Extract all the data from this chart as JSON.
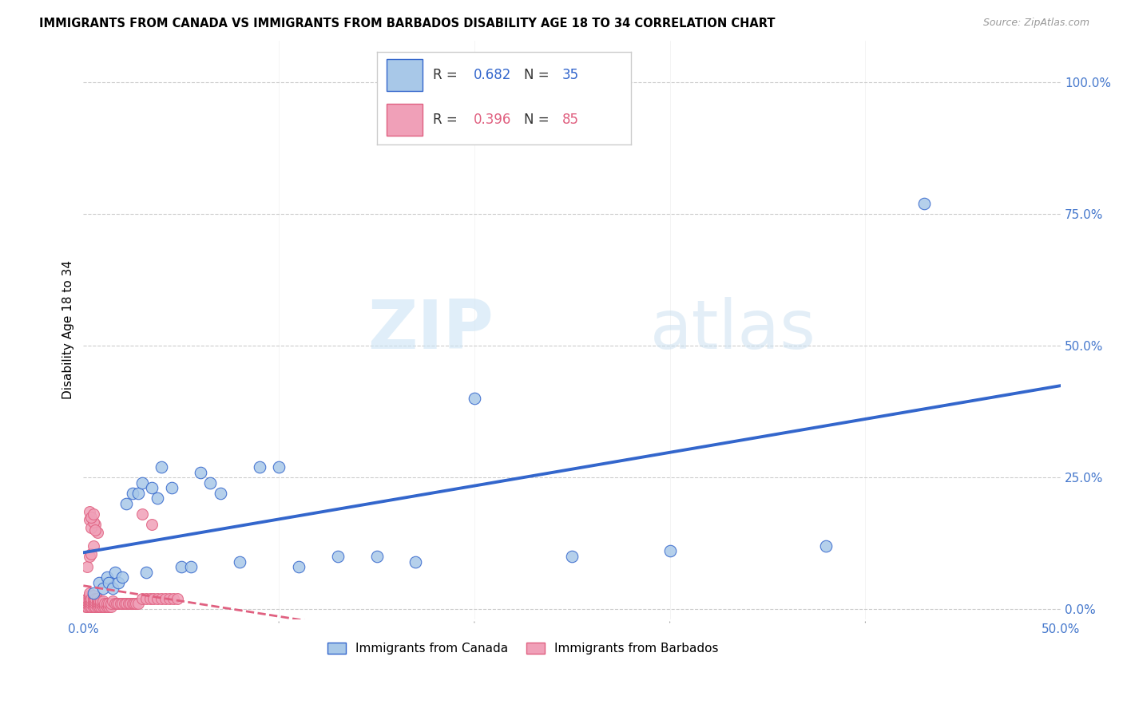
{
  "title": "IMMIGRANTS FROM CANADA VS IMMIGRANTS FROM BARBADOS DISABILITY AGE 18 TO 34 CORRELATION CHART",
  "source": "Source: ZipAtlas.com",
  "ylabel": "Disability Age 18 to 34",
  "xlim": [
    0.0,
    0.5
  ],
  "ylim": [
    -0.02,
    1.08
  ],
  "ytick_positions": [
    0.0,
    0.25,
    0.5,
    0.75,
    1.0
  ],
  "ytick_labels": [
    "0.0%",
    "25.0%",
    "50.0%",
    "75.0%",
    "100.0%"
  ],
  "xtick_positions": [
    0.0,
    0.5
  ],
  "xtick_labels": [
    "0.0%",
    "50.0%"
  ],
  "canada_color": "#a8c8e8",
  "barbados_color": "#f0a0b8",
  "canada_line_color": "#3366cc",
  "barbados_line_color": "#e06080",
  "r_canada": 0.682,
  "n_canada": 35,
  "r_barbados": 0.396,
  "n_barbados": 85,
  "legend_label_canada": "Immigrants from Canada",
  "legend_label_barbados": "Immigrants from Barbados",
  "watermark_zip": "ZIP",
  "watermark_atlas": "atlas",
  "canada_points_x": [
    0.005,
    0.008,
    0.01,
    0.012,
    0.013,
    0.015,
    0.016,
    0.018,
    0.02,
    0.022,
    0.025,
    0.028,
    0.03,
    0.032,
    0.035,
    0.038,
    0.04,
    0.045,
    0.05,
    0.055,
    0.06,
    0.065,
    0.07,
    0.08,
    0.09,
    0.1,
    0.11,
    0.13,
    0.15,
    0.17,
    0.2,
    0.25,
    0.3,
    0.38,
    0.43
  ],
  "canada_points_y": [
    0.03,
    0.05,
    0.04,
    0.06,
    0.05,
    0.04,
    0.07,
    0.05,
    0.06,
    0.2,
    0.22,
    0.22,
    0.24,
    0.07,
    0.23,
    0.21,
    0.27,
    0.23,
    0.08,
    0.08,
    0.26,
    0.24,
    0.22,
    0.09,
    0.27,
    0.27,
    0.08,
    0.1,
    0.1,
    0.09,
    0.4,
    0.1,
    0.11,
    0.12,
    0.77
  ],
  "barbados_points_x": [
    0.001,
    0.001,
    0.002,
    0.002,
    0.002,
    0.002,
    0.003,
    0.003,
    0.003,
    0.003,
    0.003,
    0.003,
    0.004,
    0.004,
    0.004,
    0.004,
    0.005,
    0.005,
    0.005,
    0.005,
    0.005,
    0.006,
    0.006,
    0.006,
    0.006,
    0.007,
    0.007,
    0.007,
    0.007,
    0.008,
    0.008,
    0.008,
    0.009,
    0.009,
    0.009,
    0.01,
    0.01,
    0.01,
    0.011,
    0.011,
    0.012,
    0.012,
    0.013,
    0.013,
    0.014,
    0.014,
    0.015,
    0.016,
    0.017,
    0.018,
    0.019,
    0.02,
    0.021,
    0.022,
    0.023,
    0.024,
    0.025,
    0.026,
    0.027,
    0.028,
    0.03,
    0.032,
    0.034,
    0.036,
    0.038,
    0.04,
    0.042,
    0.044,
    0.046,
    0.048,
    0.002,
    0.003,
    0.004,
    0.005,
    0.006,
    0.007,
    0.003,
    0.004,
    0.005,
    0.006,
    0.003,
    0.004,
    0.005,
    0.03,
    0.035
  ],
  "barbados_points_y": [
    0.005,
    0.01,
    0.005,
    0.01,
    0.015,
    0.02,
    0.005,
    0.01,
    0.015,
    0.02,
    0.025,
    0.03,
    0.005,
    0.01,
    0.015,
    0.02,
    0.005,
    0.01,
    0.015,
    0.02,
    0.025,
    0.005,
    0.01,
    0.015,
    0.02,
    0.005,
    0.01,
    0.015,
    0.02,
    0.005,
    0.01,
    0.015,
    0.005,
    0.01,
    0.015,
    0.005,
    0.01,
    0.015,
    0.005,
    0.01,
    0.005,
    0.01,
    0.005,
    0.01,
    0.005,
    0.01,
    0.015,
    0.01,
    0.01,
    0.01,
    0.01,
    0.01,
    0.01,
    0.01,
    0.01,
    0.01,
    0.01,
    0.01,
    0.01,
    0.01,
    0.02,
    0.02,
    0.02,
    0.02,
    0.02,
    0.02,
    0.02,
    0.02,
    0.02,
    0.02,
    0.08,
    0.1,
    0.105,
    0.12,
    0.16,
    0.145,
    0.17,
    0.155,
    0.165,
    0.15,
    0.185,
    0.175,
    0.18,
    0.18,
    0.16
  ]
}
